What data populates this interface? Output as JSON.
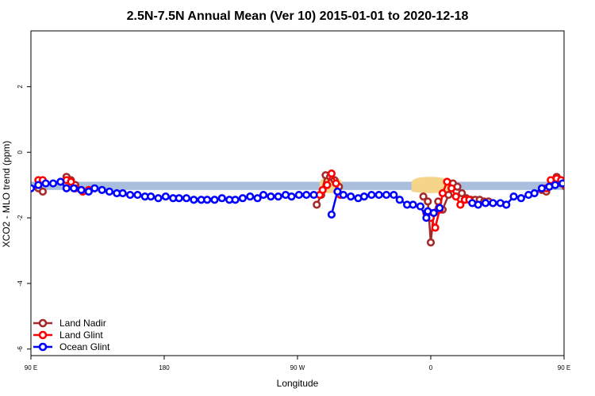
{
  "chart_data": {
    "type": "line",
    "title": "2.5N-7.5N Annual Mean (Ver 10)   2015-01-01 to 2020-12-18",
    "xlabel": "Longitude",
    "ylabel": "XCO2 - MLO trend (ppm)",
    "xlim": [
      90,
      450
    ],
    "ylim": [
      -6.2,
      3.7
    ],
    "x_ticks": [
      {
        "value": 90,
        "label": "90 E"
      },
      {
        "value": 180,
        "label": "180"
      },
      {
        "value": 270,
        "label": "90 W"
      },
      {
        "value": 360,
        "label": "0"
      },
      {
        "value": 450,
        "label": "90 E"
      },
      {
        "value": 540,
        "label": "180"
      }
    ],
    "y_ticks": [
      -6,
      -4,
      -2,
      0,
      2
    ],
    "grid": false,
    "legend_position": "bottom-left",
    "colors": {
      "land_nadir": "#a52a2a",
      "land_glint": "#ff0000",
      "ocean_glint": "#0000ff",
      "land_band": "#f5d58a",
      "ocean_band": "#a9bedd"
    },
    "background_bands": {
      "ocean_range": [
        -1.15,
        -0.9
      ],
      "land_segments": [
        [
          285,
          300
        ],
        [
          347,
          372
        ]
      ]
    },
    "series": [
      {
        "name": "Land Nadir",
        "key": "land_nadir",
        "segments": [
          {
            "x": [
              95,
              98
            ],
            "y": [
              -1.1,
              -1.2
            ]
          },
          {
            "x": [
              114,
              117,
              120
            ],
            "y": [
              -0.75,
              -0.85,
              -1.0
            ]
          },
          {
            "x": [
              283,
              286,
              289,
              292,
              295,
              298
            ],
            "y": [
              -1.6,
              -1.3,
              -0.7,
              -0.75,
              -0.85,
              -1.05
            ]
          },
          {
            "x": [
              355,
              358,
              360,
              362,
              365
            ],
            "y": [
              -1.35,
              -1.5,
              -2.75,
              -1.85,
              -1.5
            ]
          },
          {
            "x": [
              368,
              372,
              375,
              378,
              381,
              384,
              387,
              390,
              393,
              396,
              399,
              402
            ],
            "y": [
              -1.75,
              -1.3,
              -0.95,
              -1.05,
              -1.25,
              -1.4,
              -1.45,
              -1.45,
              -1.45,
              -1.5,
              -1.5,
              -1.55
            ]
          },
          {
            "x": [
              435,
              438
            ],
            "y": [
              -1.15,
              -1.2
            ]
          },
          {
            "x": [
              445,
              448,
              451
            ],
            "y": [
              -0.75,
              -0.95,
              -1.05
            ]
          }
        ]
      },
      {
        "name": "Land Glint",
        "key": "land_glint",
        "segments": [
          {
            "x": [
              95,
              98
            ],
            "y": [
              -0.85,
              -0.85
            ]
          },
          {
            "x": [
              114,
              117,
              120,
              125,
              129
            ],
            "y": [
              -0.85,
              -0.9,
              -1.1,
              -1.2,
              -1.15
            ]
          },
          {
            "x": [
              285,
              287,
              290,
              293,
              296,
              299
            ],
            "y": [
              -1.3,
              -1.15,
              -1.0,
              -0.65,
              -0.95,
              -1.3
            ]
          },
          {
            "x": [
              357,
              360,
              363,
              366,
              368,
              371,
              374,
              377,
              380,
              383,
              386
            ],
            "y": [
              -1.85,
              -2.0,
              -2.3,
              -1.75,
              -1.25,
              -0.9,
              -1.1,
              -1.35,
              -1.6,
              -1.45,
              -1.45
            ]
          },
          {
            "x": [
              438,
              441
            ],
            "y": [
              -1.1,
              -0.85
            ]
          },
          {
            "x": [
              445,
              448,
              451,
              455
            ],
            "y": [
              -0.8,
              -0.85,
              -1.0,
              -1.2
            ]
          }
        ]
      },
      {
        "name": "Ocean Glint",
        "key": "ocean_glint",
        "segments": [
          {
            "x": [
              90,
              95,
              100,
              105,
              110,
              114,
              119,
              124,
              129,
              133,
              138,
              143,
              148,
              152,
              157,
              162,
              167,
              171,
              176,
              181,
              186,
              190,
              195,
              200,
              205,
              209,
              214,
              219,
              224,
              228,
              233,
              238,
              243,
              247,
              252,
              257,
              262,
              266,
              271,
              276,
              281
            ],
            "y": [
              -1.1,
              -1.0,
              -0.95,
              -0.95,
              -0.9,
              -1.1,
              -1.1,
              -1.15,
              -1.2,
              -1.1,
              -1.15,
              -1.2,
              -1.25,
              -1.25,
              -1.3,
              -1.3,
              -1.35,
              -1.35,
              -1.4,
              -1.35,
              -1.4,
              -1.4,
              -1.4,
              -1.45,
              -1.45,
              -1.45,
              -1.45,
              -1.4,
              -1.45,
              -1.45,
              -1.4,
              -1.35,
              -1.4,
              -1.3,
              -1.35,
              -1.35,
              -1.3,
              -1.35,
              -1.3,
              -1.3,
              -1.3
            ]
          },
          {
            "x": [
              293,
              297,
              301,
              306,
              311,
              315,
              320,
              325,
              330,
              335,
              339,
              344,
              348,
              353,
              357,
              358,
              362,
              366
            ],
            "y": [
              -1.9,
              -1.2,
              -1.3,
              -1.35,
              -1.4,
              -1.35,
              -1.3,
              -1.3,
              -1.3,
              -1.3,
              -1.45,
              -1.6,
              -1.6,
              -1.65,
              -2.0,
              -1.8,
              -1.85,
              -1.7
            ]
          },
          {
            "x": [
              388,
              392,
              397,
              402,
              407,
              411,
              416,
              421,
              426,
              430,
              435,
              440,
              444,
              449,
              454,
              458,
              463,
              468,
              473,
              477,
              482,
              487,
              492,
              496,
              501,
              506,
              510
            ],
            "y": [
              -1.55,
              -1.6,
              -1.55,
              -1.55,
              -1.55,
              -1.6,
              -1.35,
              -1.4,
              -1.3,
              -1.25,
              -1.1,
              -1.05,
              -1.0,
              -0.95,
              -0.95,
              -0.9,
              -1.15,
              -1.15,
              -1.25,
              -1.15,
              -1.2,
              -1.2,
              -1.25,
              -1.3,
              -1.3,
              -1.3,
              -1.35
            ]
          }
        ]
      }
    ]
  }
}
